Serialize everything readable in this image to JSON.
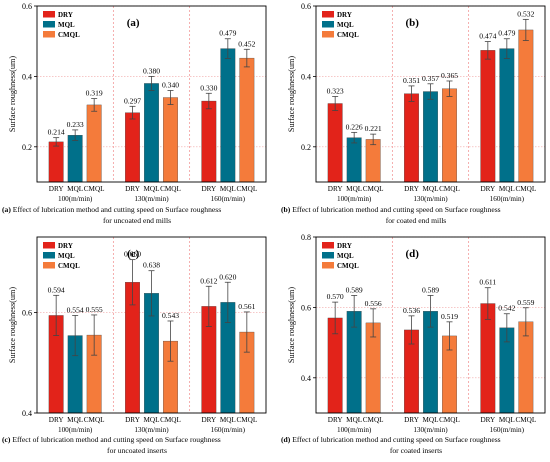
{
  "figure": {
    "colors": {
      "DRY": "#e2231a",
      "MQL": "#00708a",
      "CMQL": "#f47b3b",
      "grid": "#f2a7a7",
      "divider": "#f08c8c"
    }
  },
  "chart_data": [
    {
      "type": "bar",
      "panel_label": "(a)",
      "ylabel": "Surface roughness(um)",
      "ylim": [
        0.1,
        0.6
      ],
      "yticks": [
        0.2,
        0.4,
        0.6
      ],
      "legend": [
        "DRY",
        "MQL",
        "CMQL"
      ],
      "legend_placement": "top-left",
      "groups": [
        "100(m/min)",
        "130(m/min)",
        "160(m/min)"
      ],
      "categories": [
        "DRY",
        "MQL",
        "CMQL"
      ],
      "series": [
        {
          "name": "DRY",
          "values": [
            0.214,
            0.297,
            0.33
          ],
          "labels": [
            "0.214",
            "0.297",
            "0.330"
          ],
          "errors": [
            0.012,
            0.018,
            0.022
          ]
        },
        {
          "name": "MQL",
          "values": [
            0.233,
            0.38,
            0.479
          ],
          "labels": [
            "0.233",
            "0.380",
            "0.479"
          ],
          "errors": [
            0.015,
            0.02,
            0.028
          ]
        },
        {
          "name": "CMQL",
          "values": [
            0.319,
            0.34,
            0.452
          ],
          "labels": [
            "0.319",
            "0.340",
            "0.452"
          ],
          "errors": [
            0.018,
            0.02,
            0.025
          ]
        }
      ],
      "caption_label": "(a)",
      "caption_lines": [
        "Effect of lubrication method and cutting speed on Surface roughness",
        "for uncoated end mills"
      ]
    },
    {
      "type": "bar",
      "panel_label": "(b)",
      "ylabel": "Surface roughness(um)",
      "ylim": [
        0.1,
        0.6
      ],
      "yticks": [
        0.2,
        0.4,
        0.6
      ],
      "legend": [
        "DRY",
        "MQL",
        "CMQL"
      ],
      "legend_placement": "top-left",
      "groups": [
        "100(m/min)",
        "130(m/min)",
        "160(m/min)"
      ],
      "categories": [
        "DRY",
        "MQL",
        "CMQL"
      ],
      "series": [
        {
          "name": "DRY",
          "values": [
            0.323,
            0.351,
            0.474
          ],
          "labels": [
            "0.323",
            "0.351",
            "0.474"
          ],
          "errors": [
            0.02,
            0.022,
            0.025
          ]
        },
        {
          "name": "MQL",
          "values": [
            0.226,
            0.357,
            0.479
          ],
          "labels": [
            "0.226",
            "0.357",
            "0.479"
          ],
          "errors": [
            0.015,
            0.022,
            0.028
          ]
        },
        {
          "name": "CMQL",
          "values": [
            0.221,
            0.365,
            0.532
          ],
          "labels": [
            "0.221",
            "0.365",
            "0.532"
          ],
          "errors": [
            0.015,
            0.022,
            0.03
          ]
        }
      ],
      "caption_label": "(b)",
      "caption_lines": [
        "Effect of lubrication method and cutting speed on Surface roughness",
        "for coated end mills"
      ]
    },
    {
      "type": "bar",
      "panel_label": "(c)",
      "ylabel": "Surface roughness(um)",
      "ylim": [
        0.4,
        0.75
      ],
      "yticks": [
        0.4,
        0.6
      ],
      "legend": [
        "DRY",
        "MQL",
        "CMQL"
      ],
      "legend_placement": "top-left",
      "groups": [
        "100(m/min)",
        "130(m/min)",
        "160(m/min)"
      ],
      "categories": [
        "DRY",
        "MQL",
        "CMQL"
      ],
      "series": [
        {
          "name": "DRY",
          "values": [
            0.594,
            0.66,
            0.612
          ],
          "labels": [
            "0.594",
            "0.660",
            "0.612"
          ],
          "errors": [
            0.04,
            0.045,
            0.04
          ]
        },
        {
          "name": "MQL",
          "values": [
            0.554,
            0.638,
            0.62
          ],
          "labels": [
            "0.554",
            "0.638",
            "0.620"
          ],
          "errors": [
            0.04,
            0.045,
            0.04
          ]
        },
        {
          "name": "CMQL",
          "values": [
            0.555,
            0.543,
            0.561
          ],
          "labels": [
            "0.555",
            "0.543",
            "0.561"
          ],
          "errors": [
            0.04,
            0.04,
            0.04
          ]
        }
      ],
      "caption_label": "(c)",
      "caption_lines": [
        "Effect of lubrication method and cutting speed on Surface roughness",
        "for uncoated inserts"
      ]
    },
    {
      "type": "bar",
      "panel_label": "(d)",
      "ylabel": "Surface roughness(um)",
      "ylim": [
        0.3,
        0.8
      ],
      "yticks": [
        0.4,
        0.6,
        0.8
      ],
      "legend": [
        "DRY",
        "MQL",
        "CMQL"
      ],
      "legend_placement": "top-left",
      "groups": [
        "100(m/min)",
        "130(m/min)",
        "160(m/min)"
      ],
      "categories": [
        "DRY",
        "MQL",
        "CMQL"
      ],
      "series": [
        {
          "name": "DRY",
          "values": [
            0.57,
            0.536,
            0.611
          ],
          "labels": [
            "0.570",
            "0.536",
            "0.611"
          ],
          "errors": [
            0.045,
            0.04,
            0.045
          ]
        },
        {
          "name": "MQL",
          "values": [
            0.589,
            0.589,
            0.542
          ],
          "labels": [
            "0.589",
            "0.589",
            "0.542"
          ],
          "errors": [
            0.045,
            0.045,
            0.04
          ]
        },
        {
          "name": "CMQL",
          "values": [
            0.556,
            0.519,
            0.559
          ],
          "labels": [
            "0.556",
            "0.519",
            "0.559"
          ],
          "errors": [
            0.04,
            0.04,
            0.04
          ]
        }
      ],
      "caption_label": "(d)",
      "caption_lines": [
        "Effect of lubrication method and cutting speed on Surface roughness",
        "for coated inserts"
      ]
    }
  ]
}
